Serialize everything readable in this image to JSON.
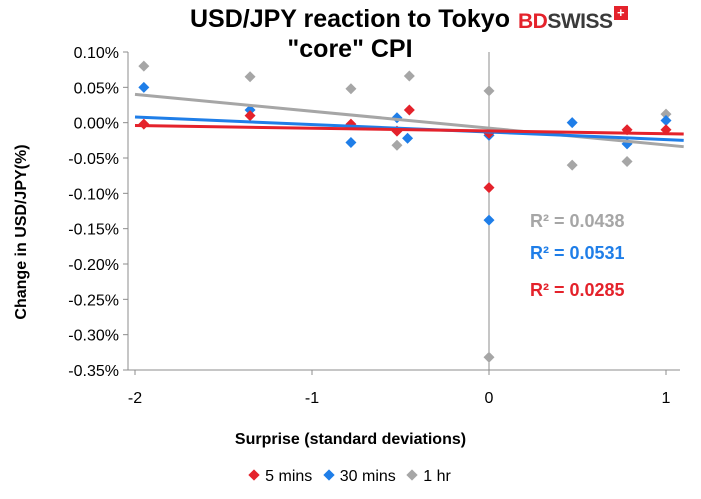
{
  "chart_data": {
    "type": "scatter",
    "title": "USD/JPY reaction to Tokyo \"core\" CPI",
    "xlabel": "Surprise (standard deviations)",
    "ylabel": "Change in USD/JPY(%)",
    "xlim": [
      -2,
      1.1
    ],
    "ylim": [
      -0.35,
      0.1
    ],
    "x_ticks": [
      -2,
      -1,
      0,
      1
    ],
    "y_ticks": [
      0.1,
      0.05,
      0,
      -0.05,
      -0.1,
      -0.15,
      -0.2,
      -0.25,
      -0.3,
      -0.35
    ],
    "x_tick_labels": [
      "-2",
      "-1",
      "0",
      "1"
    ],
    "y_tick_labels": [
      "0.10%",
      "0.05%",
      "0.00%",
      "-0.05%",
      "-0.10%",
      "-0.15%",
      "-0.20%",
      "-0.25%",
      "-0.30%",
      "-0.35%"
    ],
    "grid": false,
    "legend": "bottom",
    "series": [
      {
        "name": "5 mins",
        "color": "#e4222b",
        "r2_label": "R² = 0.0285",
        "trend": [
          [
            -2,
            -0.004
          ],
          [
            1.1,
            -0.016
          ]
        ],
        "points": [
          [
            -1.95,
            -0.002
          ],
          [
            -1.35,
            0.01
          ],
          [
            -0.78,
            -0.002
          ],
          [
            -0.52,
            -0.012
          ],
          [
            -0.45,
            0.018
          ],
          [
            0,
            -0.092
          ],
          [
            0,
            -0.015
          ],
          [
            0.78,
            -0.01
          ],
          [
            1,
            -0.01
          ]
        ]
      },
      {
        "name": "30 mins",
        "color": "#1f7ee8",
        "r2_label": "R² = 0.0531",
        "trend": [
          [
            -2,
            0.008
          ],
          [
            1.1,
            -0.025
          ]
        ],
        "points": [
          [
            -1.95,
            0.05
          ],
          [
            -1.35,
            0.018
          ],
          [
            -0.78,
            -0.028
          ],
          [
            -0.52,
            0.007
          ],
          [
            -0.46,
            -0.022
          ],
          [
            0,
            -0.018
          ],
          [
            0,
            -0.138
          ],
          [
            0.47,
            0.0
          ],
          [
            0.78,
            -0.03
          ],
          [
            1,
            0.003
          ]
        ]
      },
      {
        "name": "1 hr",
        "color": "#a6a6a6",
        "r2_label": "R² = 0.0438",
        "trend": [
          [
            -2,
            0.04
          ],
          [
            1.1,
            -0.034
          ]
        ],
        "points": [
          [
            -1.95,
            0.08
          ],
          [
            -1.35,
            0.065
          ],
          [
            -0.78,
            0.048
          ],
          [
            -0.52,
            -0.032
          ],
          [
            -0.45,
            0.066
          ],
          [
            0,
            0.045
          ],
          [
            0,
            -0.332
          ],
          [
            0.47,
            -0.06
          ],
          [
            0.78,
            -0.055
          ],
          [
            1,
            0.012
          ]
        ]
      }
    ]
  },
  "logo": {
    "bd": "BD",
    "swiss": "SWISS",
    "plus": "+"
  }
}
